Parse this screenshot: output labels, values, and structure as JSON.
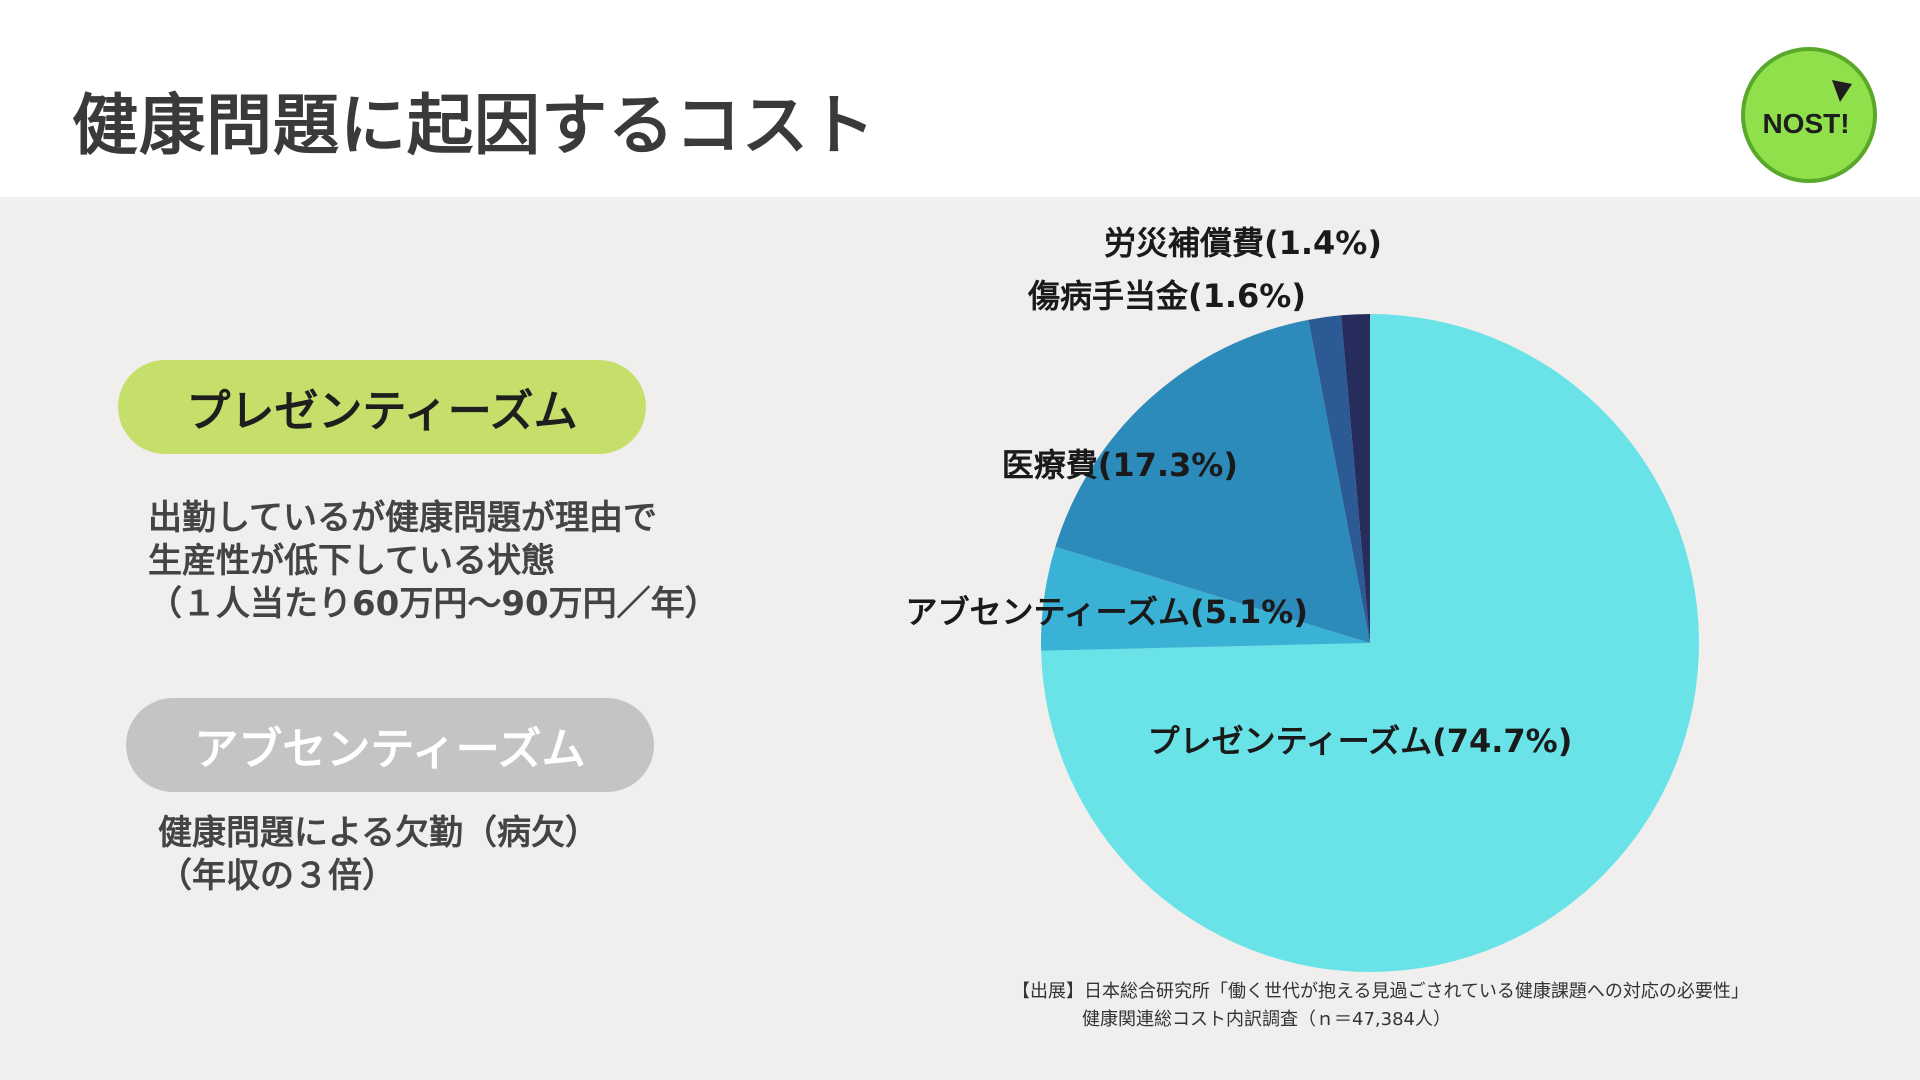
{
  "header": {
    "title": "健康問題に起因するコスト"
  },
  "logo": {
    "text": "NOST!",
    "fill": "#8fe04a",
    "ring": "#5aa82a"
  },
  "presenteeism": {
    "label": "プレゼンティーズム",
    "lines": [
      "出勤しているが健康問題が理由で",
      "生産性が低下している状態",
      "（１人当たり60万円～90万円／年）"
    ]
  },
  "absenteeism": {
    "label": "アブセンティーズム",
    "lines": [
      "健康問題による欠勤（病欠）",
      "（年収の３倍）"
    ]
  },
  "chart_data": {
    "type": "pie",
    "slices": [
      {
        "label": "プレゼンティーズム(74.7%)",
        "value": 74.7,
        "color": "#6ae3e8"
      },
      {
        "label": "アブセンティーズム(5.1%)",
        "value": 5.1,
        "color": "#3ab2d6"
      },
      {
        "label": "医療費(17.3%)",
        "value": 17.3,
        "color": "#2d8bbb"
      },
      {
        "label": "傷病手当金(1.6%)",
        "value": 1.6,
        "color": "#2b5a94"
      },
      {
        "label": "労災補償費(1.4%)",
        "value": 1.4,
        "color": "#262c5c"
      }
    ]
  },
  "source": {
    "line1": "【出展】日本総合研究所「働く世代が抱える見過ごされている健康課題への対応の必要性」",
    "line2": "健康関連総コスト内訳調査（ｎ＝47,384人）"
  }
}
